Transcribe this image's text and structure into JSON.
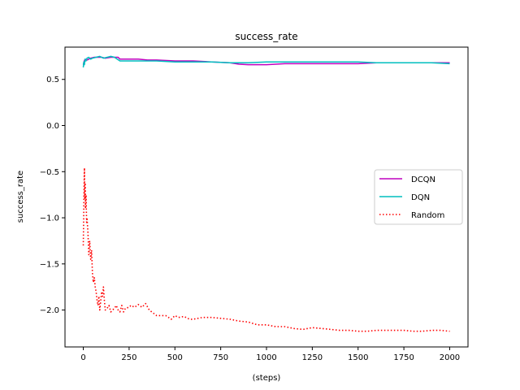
{
  "chart_data": {
    "type": "line",
    "title": "success_rate",
    "xlabel": "(steps)",
    "ylabel": "success_rate",
    "xlim": [
      -100,
      2100
    ],
    "ylim": [
      -2.4,
      0.85
    ],
    "xticks": [
      0,
      250,
      500,
      750,
      1000,
      1250,
      1500,
      1750,
      2000
    ],
    "xtick_labels": [
      "0",
      "250",
      "500",
      "750",
      "1000",
      "1250",
      "1500",
      "1750",
      "2000"
    ],
    "yticks": [
      0.5,
      0.0,
      -0.5,
      -1.0,
      -1.5,
      -2.0
    ],
    "ytick_labels": [
      "0.5",
      "0.0",
      "−0.5",
      "−1.0",
      "−1.5",
      "−2.0"
    ],
    "grid": false,
    "legend_position": "center-right",
    "series": [
      {
        "name": "DCQN",
        "color": "#bf00bf",
        "style": "solid",
        "x": [
          0,
          5,
          10,
          20,
          40,
          60,
          80,
          100,
          120,
          150,
          170,
          190,
          200,
          250,
          300,
          350,
          400,
          500,
          600,
          700,
          800,
          850,
          900,
          1000,
          1100,
          1200,
          1300,
          1400,
          1500,
          1600,
          1700,
          1800,
          1900,
          2000
        ],
        "y": [
          0.66,
          0.7,
          0.72,
          0.71,
          0.73,
          0.74,
          0.74,
          0.74,
          0.73,
          0.74,
          0.74,
          0.74,
          0.72,
          0.72,
          0.72,
          0.71,
          0.71,
          0.7,
          0.7,
          0.69,
          0.68,
          0.665,
          0.66,
          0.66,
          0.67,
          0.67,
          0.67,
          0.67,
          0.67,
          0.68,
          0.68,
          0.68,
          0.68,
          0.68
        ]
      },
      {
        "name": "DQN",
        "color": "#00bfbf",
        "style": "solid",
        "x": [
          0,
          3,
          6,
          10,
          15,
          20,
          30,
          40,
          50,
          70,
          90,
          110,
          130,
          150,
          170,
          200,
          250,
          300,
          400,
          500,
          600,
          700,
          800,
          900,
          1000,
          1100,
          1200,
          1300,
          1400,
          1500,
          1600,
          1700,
          1800,
          1900,
          2000
        ],
        "y": [
          0.63,
          0.69,
          0.66,
          0.72,
          0.7,
          0.73,
          0.74,
          0.72,
          0.73,
          0.74,
          0.75,
          0.73,
          0.74,
          0.75,
          0.74,
          0.7,
          0.7,
          0.7,
          0.7,
          0.69,
          0.69,
          0.69,
          0.68,
          0.68,
          0.69,
          0.69,
          0.69,
          0.69,
          0.69,
          0.69,
          0.68,
          0.68,
          0.68,
          0.68,
          0.67
        ]
      },
      {
        "name": "Random",
        "color": "#ff0000",
        "style": "dotted",
        "x": [
          0,
          2,
          4,
          6,
          8,
          10,
          12,
          15,
          18,
          20,
          25,
          30,
          35,
          40,
          45,
          50,
          55,
          60,
          65,
          70,
          75,
          80,
          85,
          90,
          95,
          100,
          105,
          110,
          115,
          120,
          130,
          140,
          150,
          160,
          170,
          180,
          190,
          200,
          210,
          220,
          230,
          250,
          260,
          280,
          300,
          320,
          340,
          360,
          380,
          400,
          420,
          450,
          480,
          500,
          520,
          550,
          580,
          600,
          650,
          700,
          750,
          800,
          850,
          900,
          950,
          1000,
          1050,
          1100,
          1150,
          1200,
          1250,
          1300,
          1350,
          1400,
          1450,
          1500,
          1550,
          1600,
          1650,
          1700,
          1750,
          1800,
          1850,
          1900,
          1950,
          2000
        ],
        "y": [
          -1.3,
          -1.0,
          -0.7,
          -0.46,
          -0.8,
          -0.62,
          -0.9,
          -0.75,
          -1.05,
          -1.0,
          -1.15,
          -1.4,
          -1.25,
          -1.45,
          -1.35,
          -1.6,
          -1.7,
          -1.65,
          -1.75,
          -1.8,
          -1.9,
          -1.95,
          -1.85,
          -2.0,
          -1.9,
          -1.8,
          -1.85,
          -1.75,
          -1.9,
          -2.0,
          -1.98,
          -1.95,
          -2.02,
          -2.0,
          -1.98,
          -1.95,
          -2.0,
          -2.02,
          -1.95,
          -2.02,
          -1.98,
          -1.97,
          -1.95,
          -1.97,
          -1.94,
          -1.97,
          -1.93,
          -2.0,
          -2.03,
          -2.06,
          -2.06,
          -2.06,
          -2.1,
          -2.06,
          -2.08,
          -2.07,
          -2.1,
          -2.1,
          -2.08,
          -2.08,
          -2.09,
          -2.1,
          -2.12,
          -2.13,
          -2.16,
          -2.16,
          -2.18,
          -2.18,
          -2.2,
          -2.21,
          -2.19,
          -2.2,
          -2.21,
          -2.22,
          -2.22,
          -2.23,
          -2.23,
          -2.22,
          -2.22,
          -2.22,
          -2.22,
          -2.23,
          -2.23,
          -2.22,
          -2.22,
          -2.23
        ]
      }
    ]
  }
}
